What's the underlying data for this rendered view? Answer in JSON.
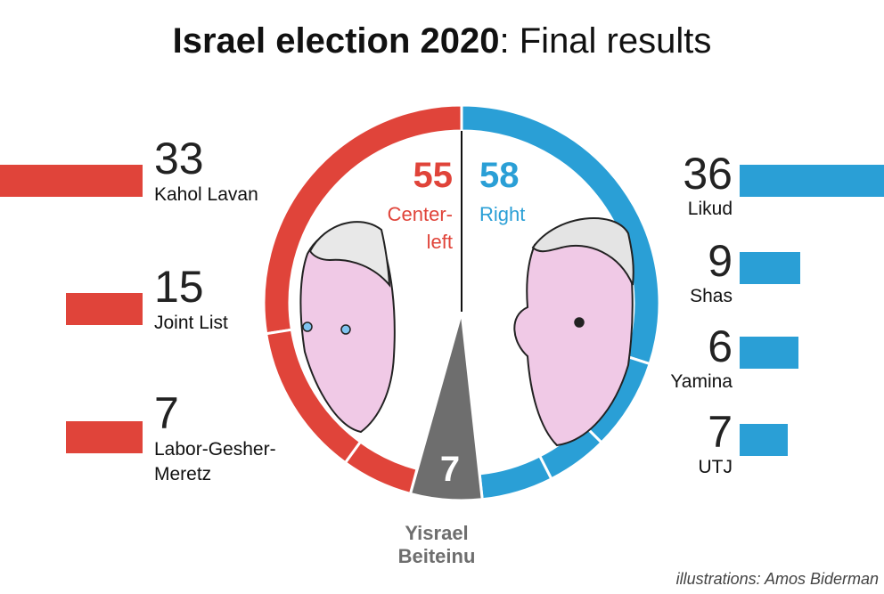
{
  "title": {
    "bold": "Israel election 2020",
    "rest": ": Final results"
  },
  "credit": "illustrations: Amos Biderman",
  "colors": {
    "center_left": "#e0443a",
    "right": "#2a9fd6",
    "neutral": "#6e6e6e"
  },
  "blocs": {
    "center_left": {
      "seats": "55",
      "label_1": "Center-",
      "label_2": "left"
    },
    "right": {
      "seats": "58",
      "label": "Right"
    },
    "neutral": {
      "seats": "7",
      "label_1": "Yisrael",
      "label_2": "Beiteinu"
    }
  },
  "chart_data": {
    "type": "bar",
    "title": "Israel election 2020: Final results",
    "unit": "seats",
    "categories": [
      "Kahol Lavan",
      "Joint List",
      "Labor-Gesher-Meretz",
      "Likud",
      "Shas",
      "Yamina",
      "UTJ",
      "Yisrael Beiteinu"
    ],
    "values": [
      33,
      15,
      7,
      36,
      9,
      6,
      7,
      7
    ],
    "bloc": [
      "Center-left",
      "Center-left",
      "Center-left",
      "Right",
      "Right",
      "Right",
      "Right",
      "Yisrael Beiteinu"
    ],
    "series": [
      {
        "name": "Center-left",
        "total": 55,
        "parties": [
          {
            "party": "Kahol Lavan",
            "seats": 33
          },
          {
            "party": "Joint List",
            "seats": 15
          },
          {
            "party": "Labor-Gesher-Meretz",
            "seats": 7
          }
        ]
      },
      {
        "name": "Right",
        "total": 58,
        "parties": [
          {
            "party": "Likud",
            "seats": 36
          },
          {
            "party": "Shas",
            "seats": 9
          },
          {
            "party": "Yamina",
            "seats": 6
          },
          {
            "party": "UTJ",
            "seats": 7
          }
        ]
      },
      {
        "name": "Yisrael Beiteinu",
        "total": 7,
        "parties": [
          {
            "party": "Yisrael Beiteinu",
            "seats": 7
          }
        ]
      }
    ],
    "left_parties": [
      {
        "party": "Kahol Lavan",
        "seats": "33",
        "label": "Kahol Lavan"
      },
      {
        "party": "Joint List",
        "seats": "15",
        "label": "Joint List"
      },
      {
        "party": "Labor-Gesher-Meretz",
        "seats": "7",
        "label_1": "Labor-Gesher-",
        "label_2": "Meretz"
      }
    ],
    "right_parties": [
      {
        "party": "Likud",
        "seats": "36",
        "label": "Likud"
      },
      {
        "party": "Shas",
        "seats": "9",
        "label": "Shas"
      },
      {
        "party": "Yamina",
        "seats": "6",
        "label": "Yamina"
      },
      {
        "party": "UTJ",
        "seats": "7",
        "label": "UTJ"
      }
    ]
  }
}
